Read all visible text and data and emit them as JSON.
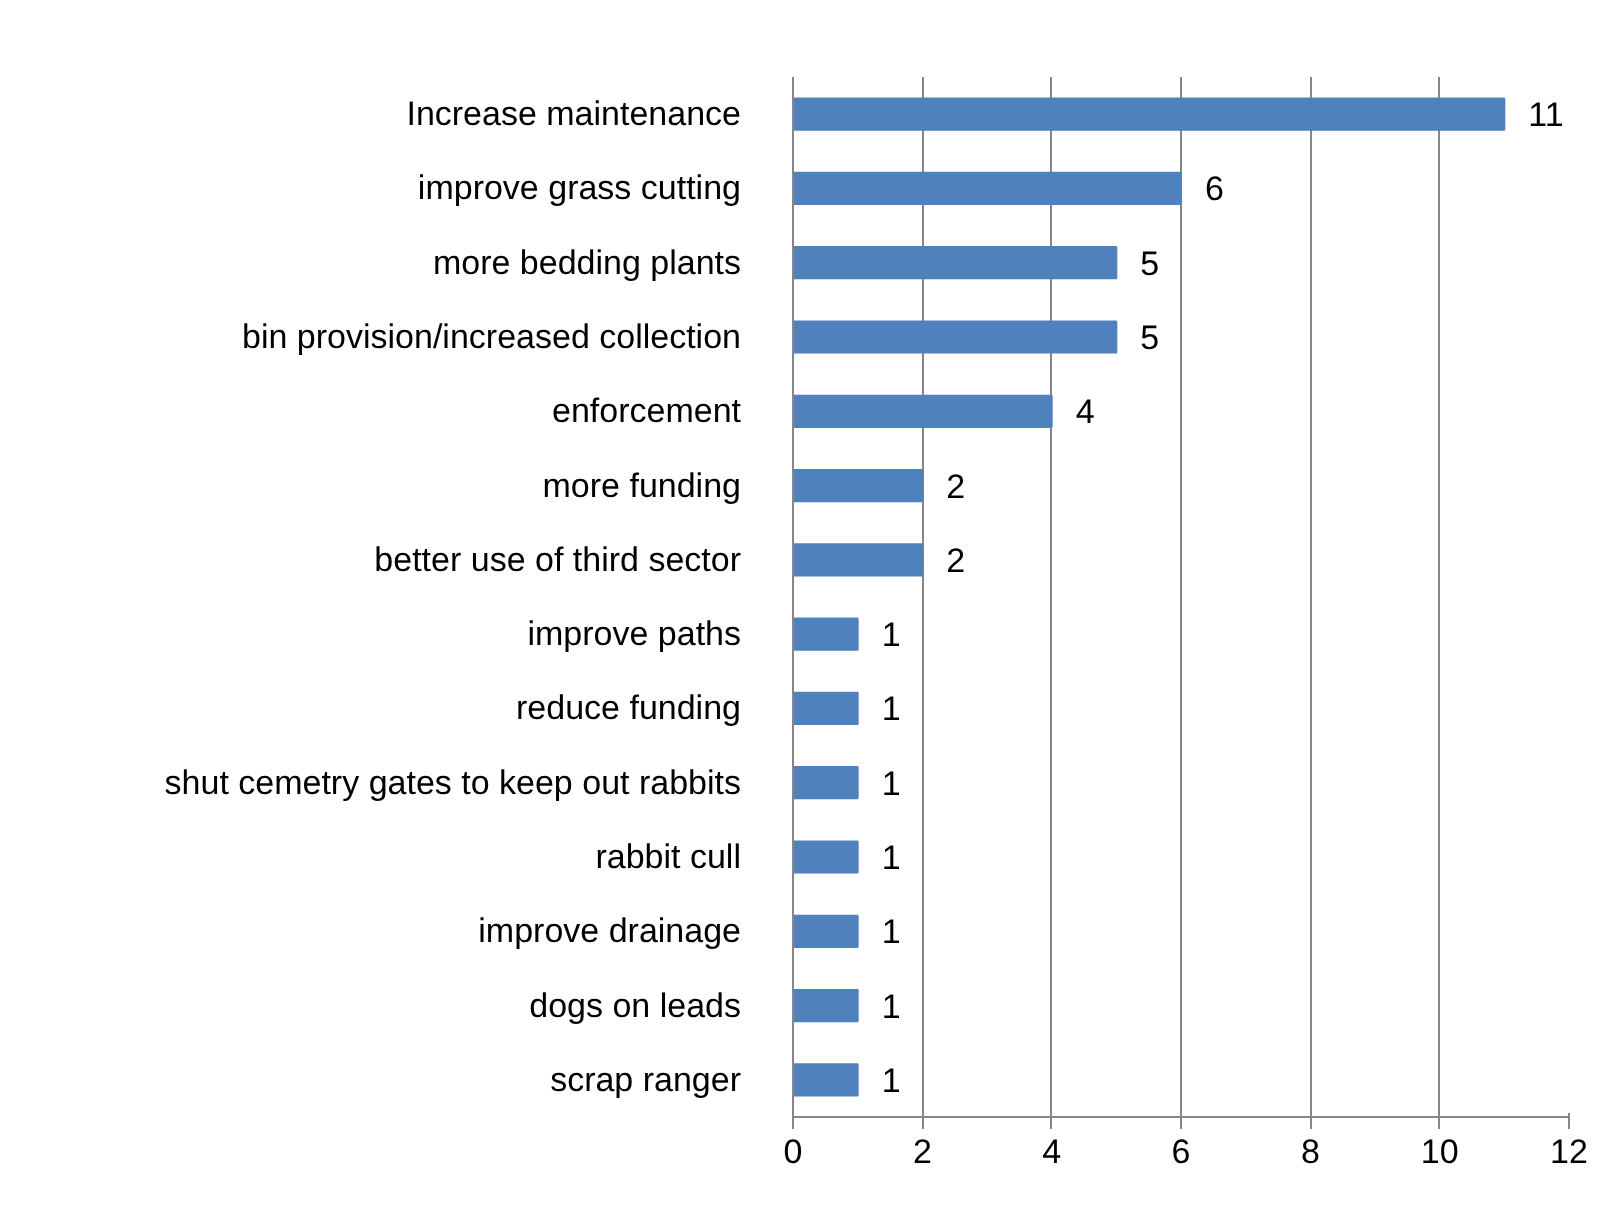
{
  "chart_data": {
    "type": "bar",
    "orientation": "horizontal",
    "categories": [
      "Increase maintenance",
      "improve grass cutting",
      "more bedding plants",
      "bin provision/increased collection",
      "enforcement",
      "more funding",
      "better use of third sector",
      "improve paths",
      "reduce funding",
      "shut cemetry gates to keep out rabbits",
      "rabbit cull",
      "improve drainage",
      "dogs on leads",
      "scrap ranger"
    ],
    "values": [
      11,
      6,
      5,
      5,
      4,
      2,
      2,
      1,
      1,
      1,
      1,
      1,
      1,
      1
    ],
    "color": "#4f81bd",
    "xlim": [
      0,
      12
    ],
    "xticks": [
      0,
      2,
      4,
      6,
      8,
      10,
      12
    ],
    "grid": "x",
    "data_labels": true
  }
}
